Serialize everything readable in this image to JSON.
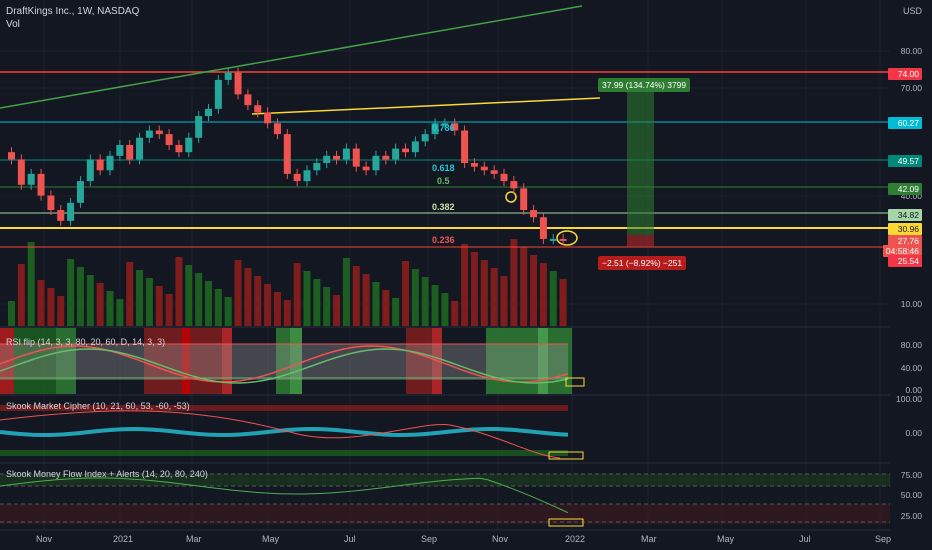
{
  "header": {
    "symbol_line": "DraftKings Inc., 1W, NASDAQ",
    "vol_label": "Vol",
    "currency": "USD"
  },
  "colors": {
    "bull": "#26a69a",
    "bear": "#ef5350",
    "bg": "#131722",
    "yellow": "#fdd835",
    "green_line": "#43a047",
    "cyan": "#26c6da",
    "red_line": "#f44336"
  },
  "price_axis": {
    "labels": [
      "80.00",
      "70.00",
      "40.00",
      "10.00"
    ],
    "tags": [
      {
        "text": "74.00",
        "color": "#f23645"
      },
      {
        "text": "60.27",
        "color": "#00bcd4"
      },
      {
        "text": "49.57",
        "color": "#00897b"
      },
      {
        "text": "42.09",
        "color": "#2e7d32"
      },
      {
        "text": "34.82",
        "color": "#a5d6a7"
      },
      {
        "text": "30.96",
        "color": "#fdd835"
      },
      {
        "text": "27.76",
        "color": "#ef5350"
      },
      {
        "text": "04:58:46",
        "color": "#ef5350"
      },
      {
        "text": "25.54",
        "color": "#f23645"
      }
    ]
  },
  "fib_labels": [
    {
      "text": "0.786",
      "color": "#26c6da"
    },
    {
      "text": "0.618",
      "color": "#26c6da"
    },
    {
      "text": "0.5",
      "color": "#66bb6a"
    },
    {
      "text": "0.382",
      "color": "#c5e1a5"
    },
    {
      "text": "0.236",
      "color": "#ef5350"
    }
  ],
  "measure": {
    "up_label": "37.99 (134.74%) 3799",
    "down_label": "−2.51 (−8.92%) −251"
  },
  "rsi_pane": {
    "title": "RSI flip (14, 3, 3, 80, 20, 60, D, 14, 3, 3)",
    "levels": [
      "80.00",
      "40.00",
      "0.00"
    ]
  },
  "cipher_pane": {
    "title": "Skook Market Cipher (10, 21, 60, 53, -60, -53)",
    "levels": [
      "100.00",
      "0.00"
    ]
  },
  "mfi_pane": {
    "title": "Skook Money Flow Index + Alerts (14, 20, 80, 240)",
    "levels": [
      "75.00",
      "50.00",
      "25.00"
    ]
  },
  "x_axis": [
    "Nov",
    "2021",
    "Mar",
    "May",
    "Jul",
    "Sep",
    "Nov",
    "2022",
    "Mar",
    "May",
    "Jul",
    "Sep"
  ],
  "chart_data": {
    "type": "candlestick",
    "symbol": "DraftKings Inc.",
    "interval": "1W",
    "candles_close": [
      50,
      43,
      46,
      40,
      36,
      33,
      38,
      44,
      50,
      47,
      51,
      54,
      50,
      56,
      58,
      57,
      54,
      52,
      56,
      62,
      64,
      72,
      74,
      68,
      65,
      63,
      60,
      57,
      46,
      44,
      47,
      49,
      51,
      50,
      53,
      48,
      47,
      51,
      50,
      53,
      52,
      55,
      57,
      60,
      60,
      58,
      49,
      48,
      47,
      46,
      44,
      42,
      36,
      34,
      28,
      28,
      27.76
    ]
  }
}
